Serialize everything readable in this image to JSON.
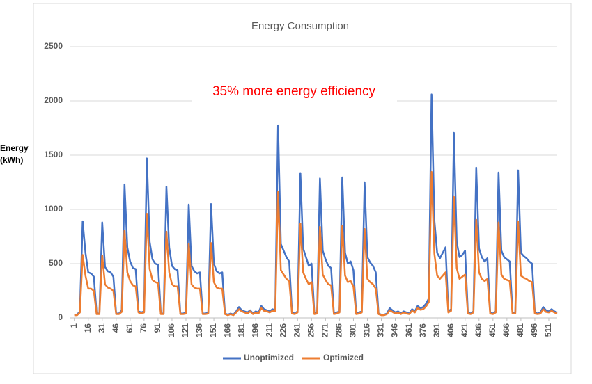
{
  "chart_data": {
    "type": "line",
    "title": "Energy Consumption",
    "annotation": "35% more energy efficiency",
    "ylabel": "Energy (kWh)",
    "x": [
      1,
      4,
      7,
      10,
      13,
      16,
      19,
      22,
      25,
      28,
      31,
      34,
      37,
      40,
      43,
      46,
      49,
      52,
      55,
      58,
      61,
      64,
      67,
      70,
      73,
      76,
      79,
      82,
      85,
      88,
      91,
      94,
      97,
      100,
      103,
      106,
      109,
      112,
      115,
      118,
      121,
      124,
      127,
      130,
      133,
      136,
      139,
      142,
      145,
      148,
      151,
      154,
      157,
      160,
      163,
      166,
      169,
      172,
      175,
      178,
      181,
      184,
      187,
      190,
      193,
      196,
      199,
      202,
      205,
      208,
      211,
      214,
      217,
      220,
      223,
      226,
      229,
      232,
      235,
      238,
      241,
      244,
      247,
      250,
      253,
      256,
      259,
      262,
      265,
      268,
      271,
      274,
      277,
      280,
      283,
      286,
      289,
      292,
      295,
      298,
      301,
      304,
      307,
      310,
      313,
      316,
      319,
      322,
      325,
      328,
      331,
      334,
      337,
      340,
      343,
      346,
      349,
      352,
      355,
      358,
      361,
      364,
      367,
      370,
      373,
      376,
      379,
      382,
      385,
      388,
      391,
      394,
      397,
      400,
      403,
      406,
      409,
      412,
      415,
      418,
      421,
      424,
      427,
      430,
      433,
      436,
      439,
      442,
      445,
      448,
      451,
      454,
      457,
      460,
      463,
      466,
      469,
      472,
      475,
      478,
      481,
      484,
      487,
      490,
      493,
      496,
      499,
      502,
      505,
      508,
      511,
      514,
      517,
      520
    ],
    "series": [
      {
        "name": "Unoptimized",
        "color": "#4472c4",
        "values": [
          30,
          30,
          60,
          890,
          600,
          420,
          410,
          380,
          40,
          40,
          880,
          470,
          430,
          420,
          380,
          40,
          40,
          70,
          1230,
          650,
          520,
          460,
          450,
          60,
          50,
          60,
          1470,
          700,
          540,
          500,
          490,
          40,
          40,
          1210,
          650,
          480,
          450,
          440,
          40,
          40,
          50,
          1045,
          480,
          430,
          410,
          420,
          40,
          40,
          50,
          1050,
          500,
          430,
          410,
          420,
          40,
          30,
          40,
          30,
          60,
          100,
          70,
          60,
          50,
          70,
          40,
          60,
          50,
          110,
          80,
          70,
          60,
          80,
          70,
          1775,
          680,
          620,
          560,
          520,
          50,
          40,
          60,
          1335,
          640,
          560,
          480,
          500,
          40,
          50,
          1285,
          620,
          540,
          480,
          460,
          40,
          50,
          60,
          1295,
          600,
          500,
          520,
          440,
          40,
          50,
          60,
          1250,
          560,
          510,
          480,
          420,
          40,
          30,
          30,
          40,
          90,
          70,
          50,
          60,
          40,
          60,
          50,
          40,
          80,
          60,
          110,
          90,
          100,
          130,
          180,
          2060,
          900,
          600,
          550,
          600,
          650,
          60,
          80,
          1705,
          700,
          560,
          580,
          620,
          50,
          40,
          60,
          1385,
          640,
          560,
          520,
          550,
          50,
          40,
          60,
          1340,
          620,
          560,
          540,
          520,
          50,
          50,
          1360,
          600,
          570,
          550,
          520,
          500,
          50,
          40,
          50,
          100,
          70,
          60,
          80,
          60,
          50
        ]
      },
      {
        "name": "Optimized",
        "color": "#ed7d31",
        "values": [
          25,
          25,
          50,
          580,
          390,
          270,
          270,
          250,
          35,
          35,
          575,
          310,
          280,
          270,
          250,
          35,
          35,
          55,
          805,
          420,
          340,
          300,
          290,
          50,
          40,
          50,
          960,
          450,
          350,
          330,
          320,
          35,
          35,
          795,
          420,
          310,
          290,
          290,
          35,
          35,
          40,
          685,
          310,
          280,
          270,
          270,
          35,
          35,
          40,
          690,
          330,
          280,
          270,
          270,
          35,
          25,
          35,
          25,
          50,
          80,
          60,
          50,
          40,
          60,
          35,
          50,
          40,
          90,
          65,
          60,
          50,
          65,
          60,
          1160,
          440,
          400,
          360,
          340,
          40,
          35,
          50,
          870,
          420,
          360,
          310,
          330,
          35,
          40,
          840,
          400,
          350,
          310,
          300,
          35,
          40,
          50,
          850,
          390,
          330,
          340,
          290,
          35,
          40,
          50,
          820,
          360,
          330,
          310,
          270,
          35,
          25,
          25,
          35,
          70,
          55,
          40,
          50,
          35,
          50,
          40,
          35,
          65,
          50,
          90,
          75,
          80,
          105,
          145,
          1345,
          590,
          390,
          360,
          390,
          420,
          50,
          65,
          1115,
          460,
          360,
          380,
          400,
          40,
          35,
          50,
          905,
          420,
          360,
          340,
          360,
          40,
          35,
          50,
          880,
          400,
          360,
          350,
          340,
          40,
          40,
          890,
          390,
          370,
          360,
          340,
          330,
          40,
          35,
          40,
          80,
          55,
          50,
          65,
          50,
          40
        ]
      }
    ],
    "xlim": [
      -4,
      520
    ],
    "xticks": [
      1,
      16,
      31,
      46,
      61,
      76,
      91,
      106,
      121,
      136,
      151,
      166,
      181,
      196,
      211,
      226,
      241,
      256,
      271,
      286,
      301,
      316,
      331,
      346,
      361,
      376,
      391,
      406,
      421,
      436,
      451,
      466,
      481,
      496,
      511
    ],
    "ylim": [
      0,
      2500
    ],
    "yticks": [
      0,
      500,
      1000,
      1500,
      2000,
      2500
    ],
    "grid": true,
    "legend": "bottom"
  }
}
